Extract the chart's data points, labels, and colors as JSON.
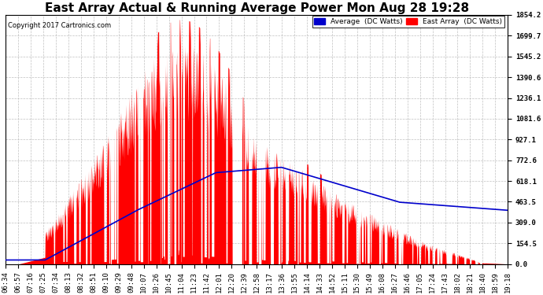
{
  "title": "East Array Actual & Running Average Power Mon Aug 28 19:28",
  "copyright": "Copyright 2017 Cartronics.com",
  "legend_avg": "Average  (DC Watts)",
  "legend_east": "East Array  (DC Watts)",
  "yticks": [
    0.0,
    154.5,
    309.0,
    463.5,
    618.1,
    772.6,
    927.1,
    1081.6,
    1236.1,
    1390.6,
    1545.2,
    1699.7,
    1854.2
  ],
  "ymax": 1854.2,
  "ymin": 0.0,
  "background_color": "#ffffff",
  "plot_bg_color": "#ffffff",
  "grid_color": "#c0c0c0",
  "area_color": "#ff0000",
  "avg_line_color": "#0000cc",
  "title_fontsize": 11,
  "tick_label_fontsize": 6.5,
  "xtick_labels": [
    "06:34",
    "06:57",
    "07:16",
    "07:25",
    "07:34",
    "08:13",
    "08:32",
    "08:51",
    "09:10",
    "09:29",
    "09:48",
    "10:07",
    "10:26",
    "10:45",
    "11:04",
    "11:23",
    "11:42",
    "12:01",
    "12:20",
    "12:39",
    "12:58",
    "13:17",
    "13:36",
    "13:55",
    "14:14",
    "14:33",
    "14:52",
    "15:11",
    "15:30",
    "15:49",
    "16:08",
    "16:27",
    "16:46",
    "17:05",
    "17:24",
    "17:43",
    "18:02",
    "18:21",
    "18:40",
    "18:59",
    "19:18"
  ]
}
